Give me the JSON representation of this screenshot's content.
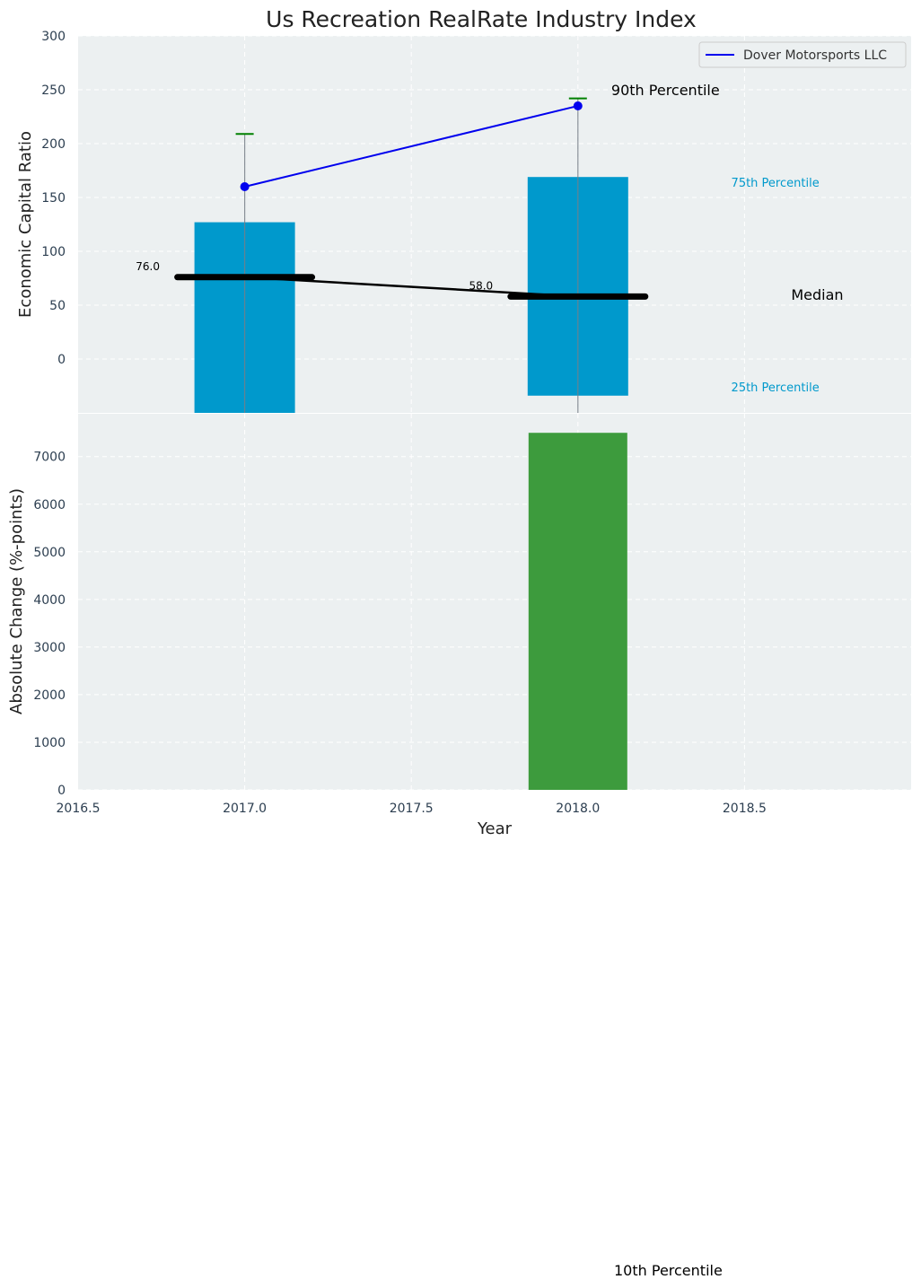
{
  "chart_data": [
    {
      "type": "bar",
      "title": "Us Recreation RealRate Industry Index",
      "ylabel": "Economic Capital Ratio",
      "ylim": [
        -50,
        300
      ],
      "yticks": [
        0,
        50,
        100,
        150,
        200,
        250,
        300
      ],
      "xlim": [
        2016.5,
        2019.0
      ],
      "grid": true,
      "bars": [
        {
          "x": 2017,
          "bottom": -50,
          "top": 127
        },
        {
          "x": 2018,
          "bottom": -34,
          "top": 169
        }
      ],
      "bar_color": "#0099cc",
      "whiskers": [
        {
          "x": 2017,
          "low": -50,
          "high": 209
        },
        {
          "x": 2018,
          "low": -50,
          "high": 242
        }
      ],
      "median": {
        "x": [
          2017,
          2018
        ],
        "values": [
          76,
          58
        ],
        "labels": [
          "76.0",
          "58.0"
        ]
      },
      "series": [
        {
          "name": "Dover Motorsports LLC",
          "x": [
            2017,
            2018
          ],
          "values": [
            160,
            235
          ],
          "color": "#0000ee"
        }
      ],
      "legend": {
        "position": "top-right",
        "entries": [
          "Dover Motorsports LLC"
        ]
      },
      "annotations": [
        {
          "text": "90th Percentile",
          "x": 2018.1,
          "y": 245,
          "style": "big"
        },
        {
          "text": "75th Percentile",
          "x": 2018.46,
          "y": 160,
          "style": "small"
        },
        {
          "text": "Median",
          "x": 2018.64,
          "y": 55,
          "style": "big"
        },
        {
          "text": "25th Percentile",
          "x": 2018.46,
          "y": -30,
          "style": "small"
        }
      ]
    },
    {
      "type": "bar",
      "xlabel": "Year",
      "ylabel": "Absolute Change (%-points)",
      "ylim": [
        0,
        7900
      ],
      "yticks": [
        0,
        1000,
        2000,
        3000,
        4000,
        5000,
        6000,
        7000
      ],
      "xlim": [
        2016.5,
        2019.0
      ],
      "xticks": [
        2016.5,
        2017.0,
        2017.5,
        2018.0,
        2018.5
      ],
      "xtick_labels": [
        "2016.5",
        "2017.0",
        "2017.5",
        "2018.0",
        "2018.5"
      ],
      "grid": true,
      "bars": [
        {
          "x": 2018,
          "value": 7500
        }
      ],
      "bar_color": "#3d9b3d"
    }
  ],
  "footer_annotation": "10th Percentile"
}
